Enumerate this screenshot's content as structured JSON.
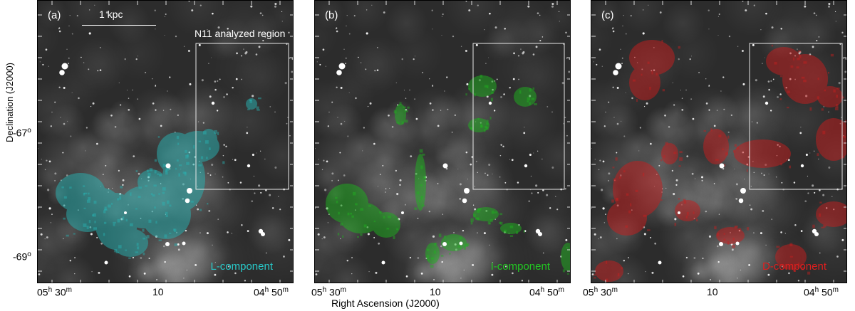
{
  "panels": [
    {
      "label": "(a)",
      "component": "L-component",
      "color": "#28b4b4",
      "scalebar": "1 kpc",
      "region_label": "N11 analyzed region"
    },
    {
      "label": "(b)",
      "component": "I-component",
      "color": "#1fb41f"
    },
    {
      "label": "(c)",
      "component": "D-component",
      "color": "#c81e1e"
    }
  ],
  "axes": {
    "ylabel": "Declination (J2000)",
    "xlabel": "Right Ascension (J2000)",
    "yticks": [
      {
        "deg": "-67",
        "sup": "o"
      },
      {
        "deg": "-69",
        "sup": "o"
      }
    ],
    "xticks": {
      "ra_start": {
        "h": "05",
        "hu": "h",
        "m": "30",
        "mu": "m"
      },
      "ra_mid": "10",
      "ra_end": {
        "h": "04",
        "hu": "h",
        "m": "50",
        "mu": "m"
      }
    }
  }
}
